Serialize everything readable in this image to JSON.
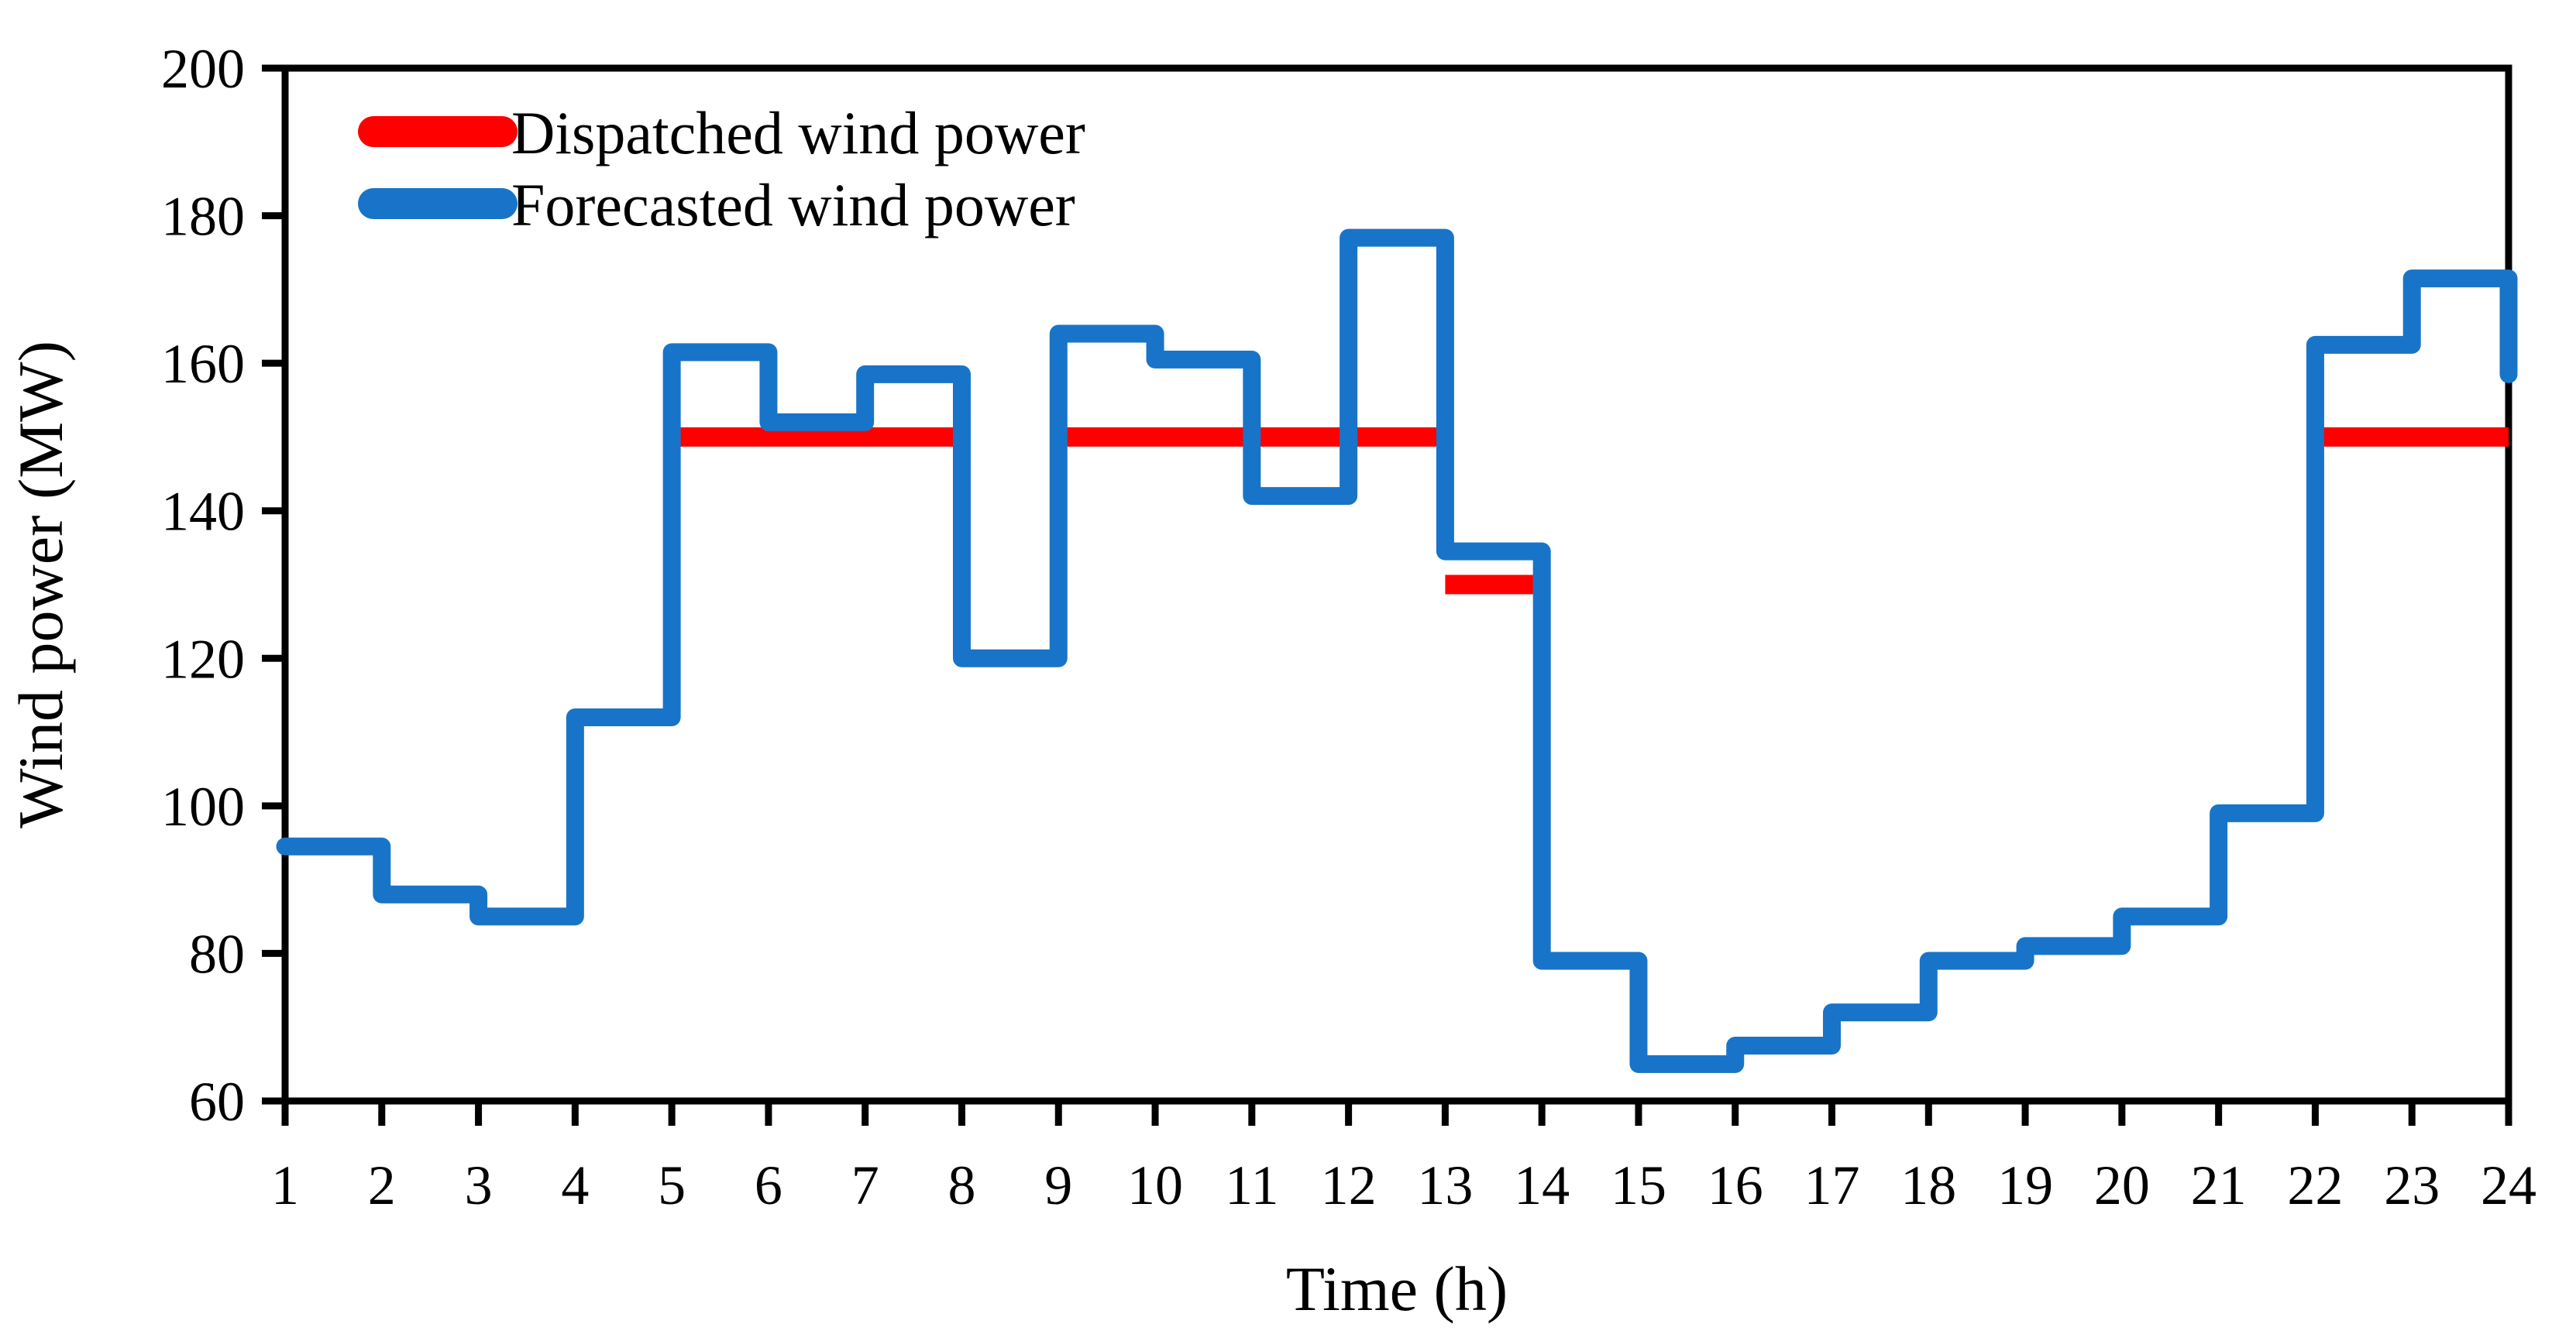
{
  "figure": {
    "y_axis_label": "Wind power (MW)",
    "x_axis_label": "Time (h)",
    "background_color": "#ffffff",
    "axis_color": "#000000",
    "legend": [
      {
        "label": "Dispatched wind power",
        "color": "#ff0000"
      },
      {
        "label": "Forecasted wind power",
        "color": "#1874c8"
      }
    ]
  },
  "chart_data": {
    "type": "line",
    "style": "step-post",
    "title": "",
    "xlabel": "Time (h)",
    "ylabel": "Wind power (MW)",
    "xlim": [
      1,
      24
    ],
    "ylim": [
      60,
      200
    ],
    "xticks": [
      1,
      2,
      3,
      4,
      5,
      6,
      7,
      8,
      9,
      10,
      11,
      12,
      13,
      14,
      15,
      16,
      17,
      18,
      19,
      20,
      21,
      22,
      23,
      24
    ],
    "yticks": [
      60,
      80,
      100,
      120,
      140,
      160,
      180,
      200
    ],
    "grid": false,
    "legend_position": "upper-left-inside",
    "x": [
      1,
      2,
      3,
      4,
      5,
      6,
      7,
      8,
      9,
      10,
      11,
      12,
      13,
      14,
      15,
      16,
      17,
      18,
      19,
      20,
      21,
      22,
      23,
      24
    ],
    "series": [
      {
        "name": "Forecasted wind power",
        "color": "#1874c8",
        "line_width": 23,
        "values": [
          94.5,
          88,
          85,
          112,
          161.5,
          152,
          158.5,
          120,
          164,
          160.5,
          142,
          177,
          134.5,
          79,
          65,
          67.5,
          72,
          79,
          81,
          85,
          99,
          162.5,
          171.5,
          158.5
        ]
      },
      {
        "name": "Dispatched wind power",
        "color": "#ff0000",
        "line_width": 25,
        "segments": [
          {
            "from_hour": 5,
            "to_hour": 8,
            "value": 150
          },
          {
            "from_hour": 9,
            "to_hour": 13,
            "value": 150
          },
          {
            "from_hour": 13,
            "to_hour": 14,
            "value": 130
          },
          {
            "from_hour": 22,
            "to_hour": 24,
            "value": 150
          }
        ]
      }
    ]
  }
}
